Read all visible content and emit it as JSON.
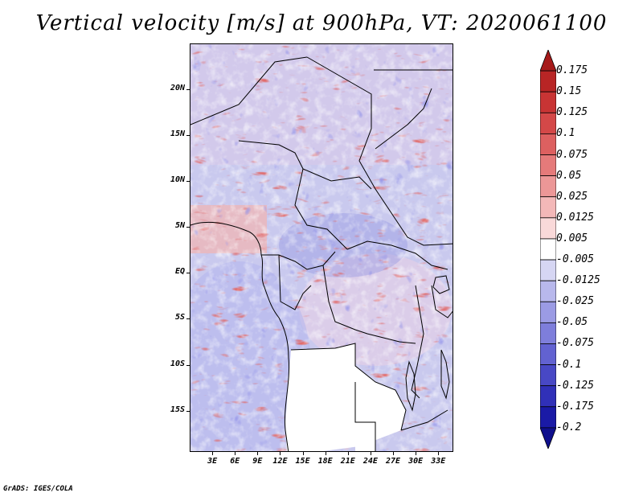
{
  "title": "Vertical velocity [m/s] at 900hPa, VT: 2020061100",
  "footer": "GrADS: IGES/COLA",
  "map": {
    "lat_labels": [
      "20N",
      "15N",
      "10N",
      "5N",
      "EQ",
      "5S",
      "10S",
      "15S"
    ],
    "lat_values": [
      20,
      15,
      10,
      5,
      0,
      -5,
      -10,
      -15
    ],
    "lon_labels": [
      "3E",
      "6E",
      "9E",
      "12E",
      "15E",
      "18E",
      "21E",
      "24E",
      "27E",
      "30E",
      "33E"
    ],
    "lon_values": [
      3,
      6,
      9,
      12,
      15,
      18,
      21,
      24,
      27,
      30,
      33
    ],
    "lon_range": [
      0,
      35
    ],
    "lat_range": [
      -19.5,
      25
    ]
  },
  "colorbar": {
    "labels": [
      "0.175",
      "0.15",
      "0.125",
      "0.1",
      "0.075",
      "0.05",
      "0.025",
      "0.0125",
      "0.005",
      "-0.005",
      "-0.0125",
      "-0.025",
      "-0.05",
      "-0.075",
      "-0.1",
      "-0.125",
      "-0.175",
      "-0.2"
    ],
    "colors": [
      "#a61a1a",
      "#b82525",
      "#c83434",
      "#d44848",
      "#dd6060",
      "#e57a7a",
      "#ec9797",
      "#f3b8b8",
      "#f9d9d9",
      "#ffffff",
      "#d6d6f3",
      "#b8b8ec",
      "#9b9be4",
      "#7e7edb",
      "#6262d1",
      "#4848c5",
      "#3030b8",
      "#1a1aa6",
      "#0f0f8c"
    ]
  }
}
